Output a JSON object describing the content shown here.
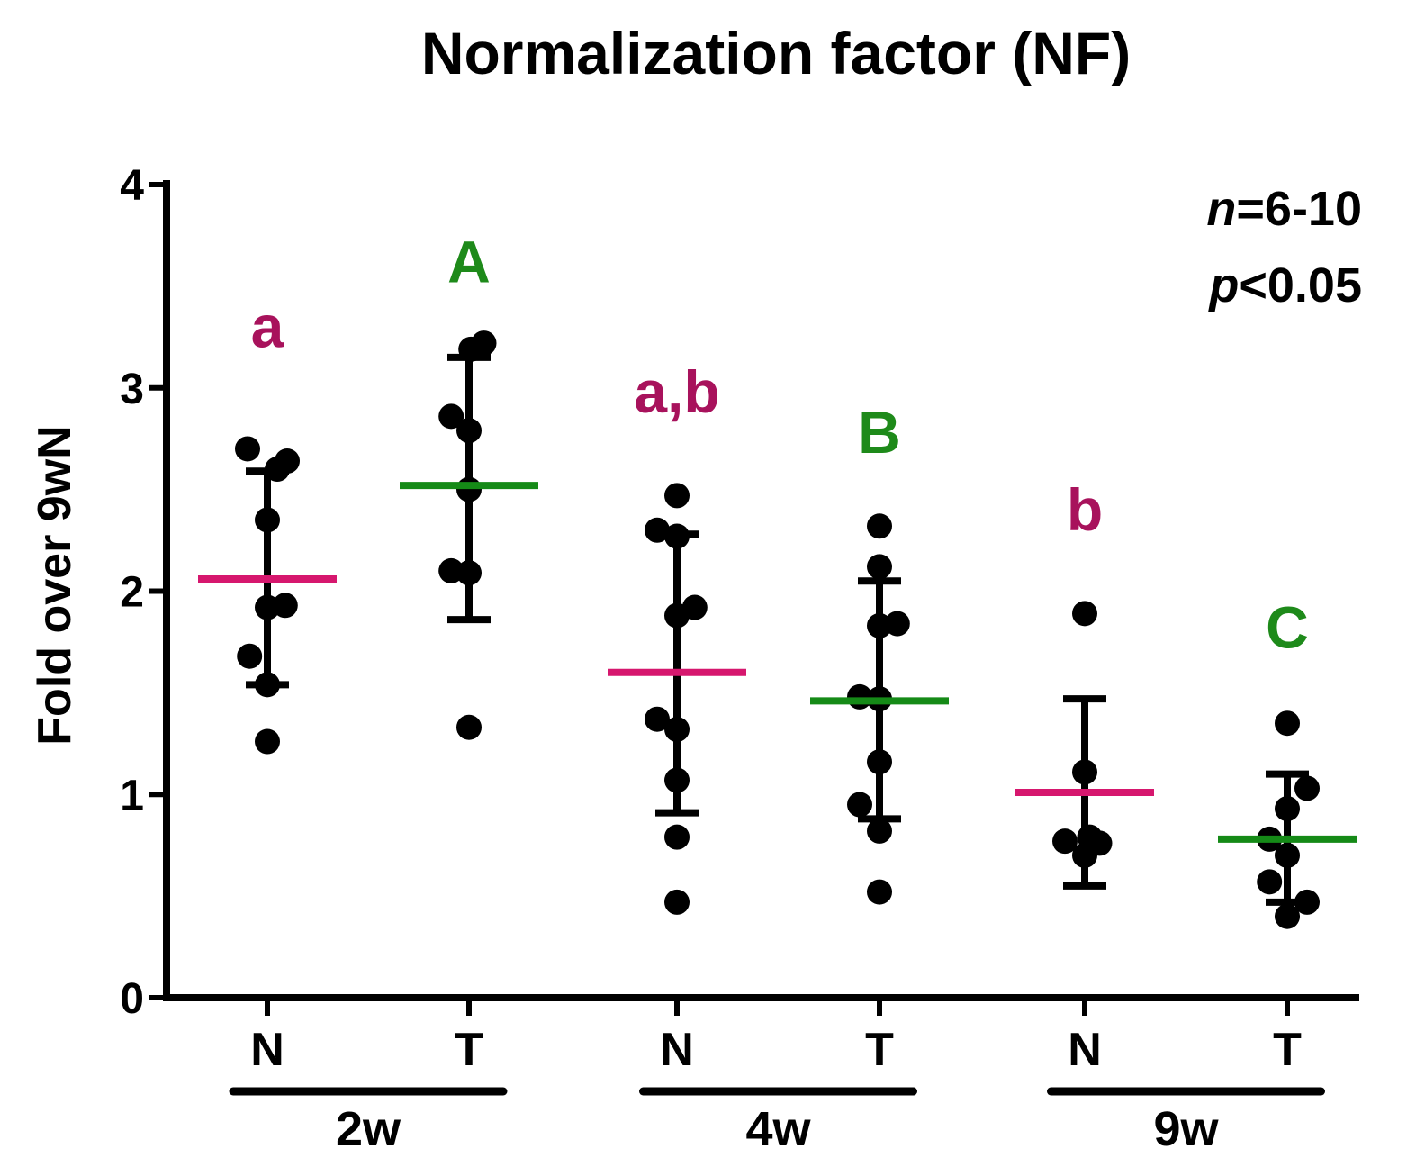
{
  "chart_data": {
    "type": "scatter",
    "title": "Normalization factor (NF)",
    "ylabel": "Fold over 9wN",
    "xlabel": "",
    "ylim": [
      0,
      4
    ],
    "yticks": [
      0,
      1,
      2,
      3,
      4
    ],
    "annotation": {
      "n_prefix": "n",
      "n_value": "=6-10",
      "p_prefix": "p",
      "p_value": "<0.05"
    },
    "colors": {
      "N": "#d6176e",
      "T": "#158a17",
      "letterN": "#a8125c",
      "letterT": "#1e8a1a",
      "points": "#000000"
    },
    "groups": [
      {
        "label": "2w",
        "members": [
          0,
          1
        ]
      },
      {
        "label": "4w",
        "members": [
          2,
          3
        ]
      },
      {
        "label": "9w",
        "members": [
          4,
          5
        ]
      }
    ],
    "categories": [
      {
        "label": "N",
        "group": "2w",
        "mean": 2.06,
        "sd": [
          1.54,
          2.59
        ],
        "letter": "a",
        "letter_y": 3.2,
        "type": "N",
        "points": [
          [
            -0.2,
            2.7
          ],
          [
            0.2,
            2.64
          ],
          [
            0.0,
            2.35
          ],
          [
            0.18,
            1.93
          ],
          [
            0.0,
            1.92
          ],
          [
            -0.18,
            1.68
          ],
          [
            0.0,
            1.54
          ],
          [
            0.0,
            1.26
          ],
          [
            0.1,
            2.6
          ]
        ]
      },
      {
        "label": "T",
        "group": "2w",
        "mean": 2.52,
        "sd": [
          1.86,
          3.15
        ],
        "letter": "A",
        "letter_y": 3.52,
        "type": "T",
        "points": [
          [
            -0.18,
            2.86
          ],
          [
            0.0,
            2.79
          ],
          [
            0.0,
            2.5
          ],
          [
            0.0,
            2.09
          ],
          [
            -0.18,
            2.1
          ],
          [
            0.15,
            3.22
          ],
          [
            0.02,
            3.19
          ],
          [
            0.0,
            1.33
          ]
        ]
      },
      {
        "label": "N",
        "group": "4w",
        "mean": 1.6,
        "sd": [
          0.91,
          2.28
        ],
        "letter": "a,b",
        "letter_y": 2.88,
        "type": "N",
        "points": [
          [
            -0.2,
            2.3
          ],
          [
            0.0,
            2.47
          ],
          [
            0.18,
            1.92
          ],
          [
            0.0,
            1.88
          ],
          [
            -0.2,
            1.37
          ],
          [
            0.0,
            1.32
          ],
          [
            0.0,
            1.07
          ],
          [
            0.0,
            0.79
          ],
          [
            0.0,
            0.47
          ],
          [
            0.0,
            2.27
          ]
        ]
      },
      {
        "label": "T",
        "group": "4w",
        "mean": 1.46,
        "sd": [
          0.88,
          2.05
        ],
        "letter": "B",
        "letter_y": 2.68,
        "type": "T",
        "points": [
          [
            0.0,
            2.32
          ],
          [
            0.0,
            2.12
          ],
          [
            0.18,
            1.84
          ],
          [
            0.0,
            1.83
          ],
          [
            -0.2,
            1.48
          ],
          [
            0.0,
            1.47
          ],
          [
            0.0,
            1.16
          ],
          [
            -0.2,
            0.95
          ],
          [
            0.0,
            0.82
          ],
          [
            0.0,
            0.52
          ]
        ]
      },
      {
        "label": "N",
        "group": "9w",
        "mean": 1.01,
        "sd": [
          0.55,
          1.47
        ],
        "letter": "b",
        "letter_y": 2.3,
        "type": "N",
        "points": [
          [
            0.0,
            1.89
          ],
          [
            0.0,
            1.11
          ],
          [
            -0.2,
            0.77
          ],
          [
            0.05,
            0.79
          ],
          [
            0.15,
            0.76
          ],
          [
            0.0,
            0.7
          ]
        ]
      },
      {
        "label": "T",
        "group": "9w",
        "mean": 0.78,
        "sd": [
          0.47,
          1.1
        ],
        "letter": "C",
        "letter_y": 1.72,
        "type": "T",
        "points": [
          [
            0.0,
            1.35
          ],
          [
            0.2,
            1.03
          ],
          [
            0.0,
            0.93
          ],
          [
            -0.18,
            0.78
          ],
          [
            0.0,
            0.7
          ],
          [
            -0.18,
            0.57
          ],
          [
            0.2,
            0.47
          ],
          [
            0.0,
            0.4
          ]
        ]
      }
    ]
  }
}
